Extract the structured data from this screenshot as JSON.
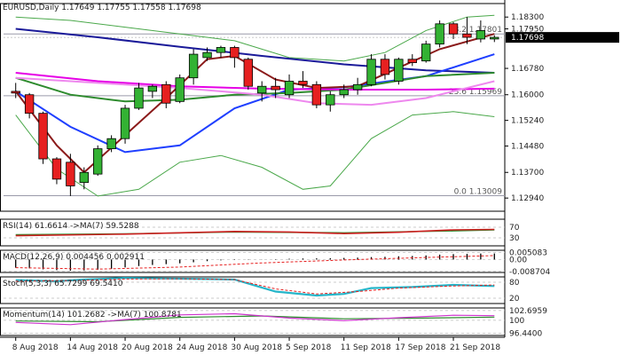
{
  "chart_data": {
    "type": "candlestick",
    "colors": {
      "bull": "#33b233",
      "bear": "#e62020",
      "ma_blue_dark": "#1a1a99",
      "ma_blue": "#1f3fff",
      "ma_green": "#2e8b2e",
      "ma_dark_red": "#8b1a1a",
      "ma_magenta": "#e600e6",
      "ma_violet": "#ee88ee",
      "bollinger": "#4aa84a",
      "level_line": "#9a9aaa",
      "rsi": "#cc2020",
      "rsi_ma": "#2e8b2e",
      "macd_signal": "#e62020",
      "stoch_k": "#26b5c9",
      "stoch_d": "#e62020",
      "momentum": "#cc33cc",
      "momentum_ma": "#2e8b2e"
    },
    "main": {
      "title": "EURUSD,Daily  1.17649 1.17755 1.17558 1.17698",
      "ylim": [
        1.1255,
        1.187
      ],
      "yticks": [
        "1.18300",
        "1.17950",
        "1.16780",
        "1.16000",
        "1.15240",
        "1.14480",
        "1.13700",
        "1.12940"
      ],
      "xticks": [
        {
          "i": 0,
          "label": "8 Aug 2018"
        },
        {
          "i": 4,
          "label": "14 Aug 2018"
        },
        {
          "i": 8,
          "label": "20 Aug 2018"
        },
        {
          "i": 12,
          "label": "24 Aug 2018"
        },
        {
          "i": 16,
          "label": "30 Aug 2018"
        },
        {
          "i": 20,
          "label": "5 Sep 2018"
        },
        {
          "i": 24,
          "label": "11 Sep 2018"
        },
        {
          "i": 28,
          "label": "17 Sep 2018"
        },
        {
          "i": 32,
          "label": "21 Sep 2018"
        }
      ],
      "candles": [
        {
          "o": 1.161,
          "h": 1.1635,
          "l": 1.159,
          "c": 1.1605
        },
        {
          "o": 1.16,
          "h": 1.1605,
          "l": 1.153,
          "c": 1.1545
        },
        {
          "o": 1.1545,
          "h": 1.155,
          "l": 1.1395,
          "c": 1.141
        },
        {
          "o": 1.141,
          "h": 1.1415,
          "l": 1.1335,
          "c": 1.135
        },
        {
          "o": 1.14,
          "h": 1.1425,
          "l": 1.13,
          "c": 1.133
        },
        {
          "o": 1.134,
          "h": 1.1385,
          "l": 1.132,
          "c": 1.137
        },
        {
          "o": 1.1365,
          "h": 1.145,
          "l": 1.136,
          "c": 1.144
        },
        {
          "o": 1.144,
          "h": 1.148,
          "l": 1.143,
          "c": 1.147
        },
        {
          "o": 1.147,
          "h": 1.157,
          "l": 1.1455,
          "c": 1.156
        },
        {
          "o": 1.156,
          "h": 1.1635,
          "l": 1.1555,
          "c": 1.162
        },
        {
          "o": 1.161,
          "h": 1.163,
          "l": 1.159,
          "c": 1.1625
        },
        {
          "o": 1.163,
          "h": 1.164,
          "l": 1.156,
          "c": 1.1575
        },
        {
          "o": 1.158,
          "h": 1.166,
          "l": 1.1575,
          "c": 1.165
        },
        {
          "o": 1.165,
          "h": 1.1735,
          "l": 1.163,
          "c": 1.172
        },
        {
          "o": 1.171,
          "h": 1.174,
          "l": 1.17,
          "c": 1.1725
        },
        {
          "o": 1.1725,
          "h": 1.1745,
          "l": 1.171,
          "c": 1.174
        },
        {
          "o": 1.174,
          "h": 1.1745,
          "l": 1.168,
          "c": 1.171
        },
        {
          "o": 1.1705,
          "h": 1.171,
          "l": 1.1615,
          "c": 1.1625
        },
        {
          "o": 1.1605,
          "h": 1.164,
          "l": 1.158,
          "c": 1.1625
        },
        {
          "o": 1.1625,
          "h": 1.165,
          "l": 1.159,
          "c": 1.1615
        },
        {
          "o": 1.16,
          "h": 1.166,
          "l": 1.159,
          "c": 1.164
        },
        {
          "o": 1.164,
          "h": 1.167,
          "l": 1.162,
          "c": 1.163
        },
        {
          "o": 1.163,
          "h": 1.164,
          "l": 1.156,
          "c": 1.157
        },
        {
          "o": 1.157,
          "h": 1.161,
          "l": 1.155,
          "c": 1.16
        },
        {
          "o": 1.16,
          "h": 1.163,
          "l": 1.159,
          "c": 1.1615
        },
        {
          "o": 1.1615,
          "h": 1.165,
          "l": 1.16,
          "c": 1.163
        },
        {
          "o": 1.163,
          "h": 1.172,
          "l": 1.1625,
          "c": 1.1705
        },
        {
          "o": 1.1705,
          "h": 1.172,
          "l": 1.1645,
          "c": 1.166
        },
        {
          "o": 1.164,
          "h": 1.171,
          "l": 1.163,
          "c": 1.1705
        },
        {
          "o": 1.1705,
          "h": 1.172,
          "l": 1.1685,
          "c": 1.1695
        },
        {
          "o": 1.17,
          "h": 1.176,
          "l": 1.1695,
          "c": 1.175
        },
        {
          "o": 1.175,
          "h": 1.182,
          "l": 1.174,
          "c": 1.181
        },
        {
          "o": 1.181,
          "h": 1.1815,
          "l": 1.1765,
          "c": 1.178
        },
        {
          "o": 1.178,
          "h": 1.183,
          "l": 1.175,
          "c": 1.177
        },
        {
          "o": 1.1765,
          "h": 1.182,
          "l": 1.1755,
          "c": 1.179
        },
        {
          "o": 1.1765,
          "h": 1.1776,
          "l": 1.1756,
          "c": 1.177
        }
      ],
      "levels": [
        {
          "value": 1.17801,
          "label": "38.2 1.17801"
        },
        {
          "value": 1.15969,
          "label": "23.6 1.15969"
        },
        {
          "value": 1.13009,
          "label": "0.0 1.13009"
        }
      ],
      "last_price": "1.17698",
      "last_value": 1.17698,
      "moving_averages": [
        {
          "color_key": "ma_blue_dark",
          "x": [
            0,
            6,
            12,
            18,
            24,
            30,
            35
          ],
          "y": [
            1.1795,
            1.177,
            1.1742,
            1.1715,
            1.169,
            1.1672,
            1.1665
          ]
        },
        {
          "color_key": "ma_blue",
          "x": [
            0,
            4,
            8,
            12,
            16,
            20,
            24,
            30,
            35
          ],
          "y": [
            1.161,
            1.1505,
            1.143,
            1.145,
            1.156,
            1.1615,
            1.1622,
            1.1655,
            1.172
          ]
        },
        {
          "color_key": "ma_green",
          "x": [
            0,
            4,
            8,
            12,
            16,
            20,
            24,
            30,
            35
          ],
          "y": [
            1.165,
            1.16,
            1.158,
            1.1585,
            1.16,
            1.1605,
            1.1615,
            1.1655,
            1.1665
          ]
        },
        {
          "color_key": "ma_dark_red",
          "x": [
            0,
            3,
            5,
            8,
            11,
            14,
            16,
            19,
            22,
            25,
            28,
            31,
            35
          ],
          "y": [
            1.161,
            1.145,
            1.137,
            1.148,
            1.159,
            1.1705,
            1.1715,
            1.1645,
            1.162,
            1.1625,
            1.168,
            1.1735,
            1.178
          ]
        },
        {
          "color_key": "ma_magenta",
          "x": [
            0,
            6,
            12,
            18,
            24,
            30,
            35
          ],
          "y": [
            1.1665,
            1.164,
            1.1625,
            1.1618,
            1.1615,
            1.1615,
            1.1618
          ]
        },
        {
          "color_key": "ma_violet",
          "x": [
            0,
            6,
            12,
            18,
            22,
            26,
            30,
            35
          ],
          "y": [
            1.165,
            1.1635,
            1.162,
            1.16,
            1.1575,
            1.157,
            1.159,
            1.164
          ]
        }
      ],
      "bollinger": [
        {
          "x": [
            0,
            4,
            8,
            12,
            16,
            20,
            24,
            27,
            30,
            33,
            35
          ],
          "y": [
            1.183,
            1.182,
            1.18,
            1.178,
            1.176,
            1.171,
            1.17,
            1.1725,
            1.179,
            1.183,
            1.1835
          ]
        },
        {
          "x": [
            0,
            3,
            6,
            9,
            12,
            15,
            18,
            21,
            23,
            26,
            29,
            32,
            35
          ],
          "y": [
            1.154,
            1.138,
            1.13,
            1.132,
            1.14,
            1.142,
            1.1385,
            1.132,
            1.133,
            1.147,
            1.154,
            1.155,
            1.1535
          ]
        }
      ]
    },
    "rsi": {
      "label": "RSI(14) 61.6614  ->MA(7) 59.5288",
      "ylim": [
        0,
        100
      ],
      "ticks": [
        {
          "value": 70,
          "label": "70"
        },
        {
          "value": 30,
          "label": "30"
        }
      ],
      "line_x": [
        0,
        8,
        16,
        20,
        24,
        28,
        32,
        35
      ],
      "line_y": [
        38,
        44,
        54,
        52,
        46,
        51,
        60,
        61.66
      ],
      "ma_x": [
        0,
        8,
        16,
        24,
        32,
        35
      ],
      "ma_y": [
        42,
        45,
        52,
        49,
        56,
        59.53
      ]
    },
    "macd": {
      "label": "MACD(12,26,9) 0.004456 0.002911",
      "ylim": [
        -0.0095,
        0.0068
      ],
      "ticks": [
        {
          "value": 0.005083,
          "label": "0.005083"
        },
        {
          "value": 0.0,
          "label": "0.00"
        },
        {
          "value": -0.008704,
          "label": "-0.008704"
        }
      ],
      "hist": [
        -0.006,
        -0.0065,
        -0.0072,
        -0.0078,
        -0.0082,
        -0.008,
        -0.0075,
        -0.0068,
        -0.0058,
        -0.0048,
        -0.004,
        -0.0034,
        -0.0028,
        -0.002,
        -0.0012,
        -0.0006,
        -0.0003,
        -0.0002,
        -0.0001,
        0.0003,
        0.0006,
        0.0008,
        0.0009,
        0.001,
        0.0012,
        0.0014,
        0.0018,
        0.002,
        0.0024,
        0.0026,
        0.003,
        0.0036,
        0.004,
        0.0042,
        0.0044,
        0.004456
      ],
      "signal_x": [
        0,
        6,
        12,
        18,
        24,
        30,
        35
      ],
      "signal_y": [
        -0.006,
        -0.007,
        -0.0055,
        -0.0025,
        -0.0003,
        0.0015,
        0.002911
      ]
    },
    "stoch": {
      "label": "Stoch(5,3,3) 65.7299 69.5410",
      "ylim": [
        0,
        100
      ],
      "ticks": [
        {
          "value": 80,
          "label": "80"
        },
        {
          "value": 20,
          "label": "20"
        }
      ],
      "k_x": [
        0,
        3,
        5,
        8,
        11,
        14,
        16,
        19,
        22,
        24,
        26,
        29,
        32,
        35
      ],
      "k_y": [
        88,
        84,
        90,
        96,
        94,
        92,
        90,
        45,
        30,
        36,
        58,
        62,
        70,
        65.73
      ],
      "d_x": [
        0,
        4,
        8,
        12,
        16,
        19,
        22,
        25,
        28,
        32,
        35
      ],
      "d_y": [
        84,
        86,
        92,
        93,
        90,
        55,
        36,
        45,
        58,
        66,
        69.54
      ]
    },
    "momentum": {
      "label": "Momentum(14) 101.2682  ->MA(7) 100.8781",
      "ylim": [
        95.8,
        103.4
      ],
      "ticks": [
        {
          "value": 102.6959,
          "label": "102.6959"
        },
        {
          "value": 100,
          "label": "100"
        },
        {
          "value": 96.44,
          "label": "96.4400"
        }
      ],
      "line_x": [
        0,
        4,
        8,
        12,
        16,
        20,
        24,
        28,
        32,
        35
      ],
      "line_y": [
        99.4,
        98.8,
        100.2,
        101.5,
        101.8,
        100.6,
        99.9,
        100.7,
        101.4,
        101.27
      ],
      "ma_x": [
        0,
        6,
        12,
        18,
        24,
        30,
        35
      ],
      "ma_y": [
        99.8,
        99.6,
        100.8,
        101.2,
        100.4,
        100.6,
        100.88
      ]
    }
  }
}
